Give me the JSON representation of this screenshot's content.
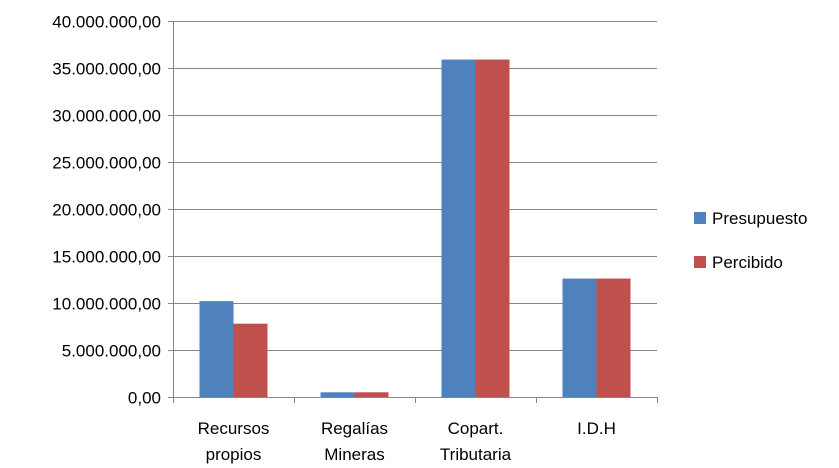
{
  "chart_data": {
    "type": "bar",
    "title": "",
    "xlabel": "",
    "ylabel": "",
    "ylim": [
      0,
      40000000
    ],
    "ytick_step": 5000000,
    "ytick_labels": [
      "0,00",
      "5.000.000,00",
      "10.000.000,00",
      "15.000.000,00",
      "20.000.000,00",
      "25.000.000,00",
      "30.000.000,00",
      "35.000.000,00",
      "40.000.000,00"
    ],
    "grid": true,
    "legend_position": "right",
    "categories": [
      [
        "Recursos",
        "propios"
      ],
      [
        "Regalías",
        "Mineras"
      ],
      [
        "Copart.",
        "Tributaria"
      ],
      [
        "I.D.H"
      ]
    ],
    "series": [
      {
        "name": "Presupuesto",
        "color": "#4F81BD",
        "values": [
          10200000,
          500000,
          35900000,
          12600000
        ]
      },
      {
        "name": "Percibido",
        "color": "#C0504D",
        "values": [
          7800000,
          500000,
          35900000,
          12600000
        ]
      }
    ]
  }
}
